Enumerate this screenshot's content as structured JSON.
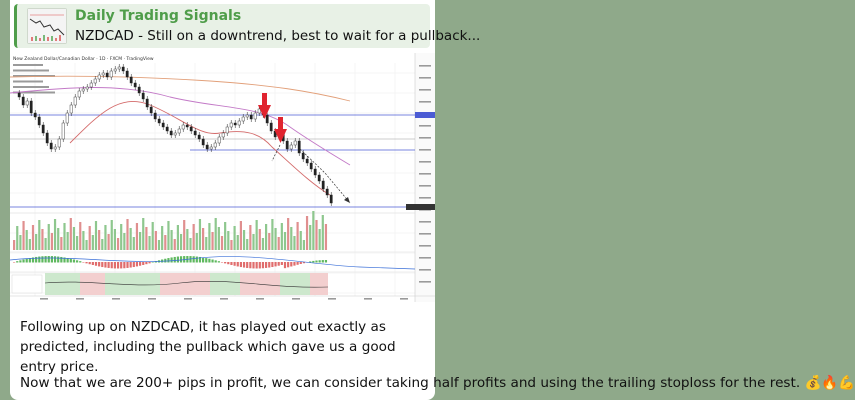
{
  "channel": {
    "name": "Daily Trading Signals"
  },
  "reply_preview": {
    "title": "Daily Trading Signals",
    "text": "NZDCAD - Still on a downtrend, best to wait for a pullback..."
  },
  "message": {
    "paragraph1": "Following up on NZDCAD, it has played out exactly as predicted, including the pullback which gave us a good entry price.",
    "paragraph2": "Now that we are 200+ pips in profit, we can consider taking half profits and using the trailing stoploss for the rest. 💰🔥💪"
  },
  "chart_header": {
    "title": "New Zealand Dollar/Canadian Dollar · 1D · FXCM · TradingView"
  },
  "colors": {
    "accent": "#4f9d4a",
    "arrow": "#e0242f",
    "background": "#8fa98a"
  },
  "icons": [
    "reply-thumbnail-icon",
    "down-arrow-icon",
    "sell-arrow-icon"
  ]
}
